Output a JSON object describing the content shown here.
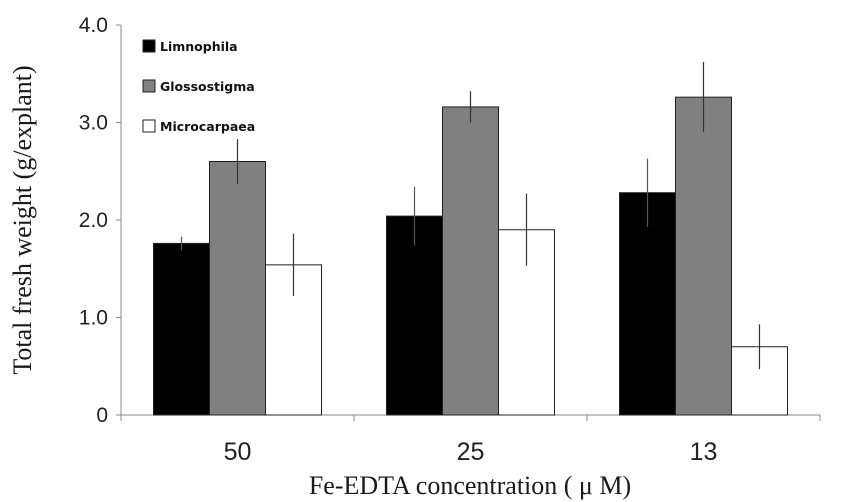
{
  "chart_data": {
    "type": "bar",
    "categories": [
      "50",
      "25",
      "13"
    ],
    "series": [
      {
        "name": "Limnophila",
        "color": "#000000",
        "values": [
          1.76,
          2.04,
          2.28
        ],
        "errors": [
          0.07,
          0.3,
          0.35
        ]
      },
      {
        "name": "Glossostigma",
        "color": "#808080",
        "values": [
          2.6,
          3.16,
          3.26
        ],
        "errors": [
          0.23,
          0.16,
          0.36
        ]
      },
      {
        "name": "Microcarpaea",
        "color": "#ffffff",
        "values": [
          1.54,
          1.9,
          0.7
        ],
        "errors": [
          0.32,
          0.37,
          0.23
        ]
      }
    ],
    "xlabel": "Fe-EDTA concentration ( μ M)",
    "ylabel": "Total fresh weight (g/explant)",
    "ylim": [
      0,
      4.0
    ],
    "yticks": [
      0,
      1.0,
      2.0,
      3.0,
      4.0
    ],
    "ytick_labels": [
      "0",
      "1.0",
      "2.0",
      "3.0",
      "4.0"
    ],
    "grid": false,
    "legend": "top-left"
  }
}
